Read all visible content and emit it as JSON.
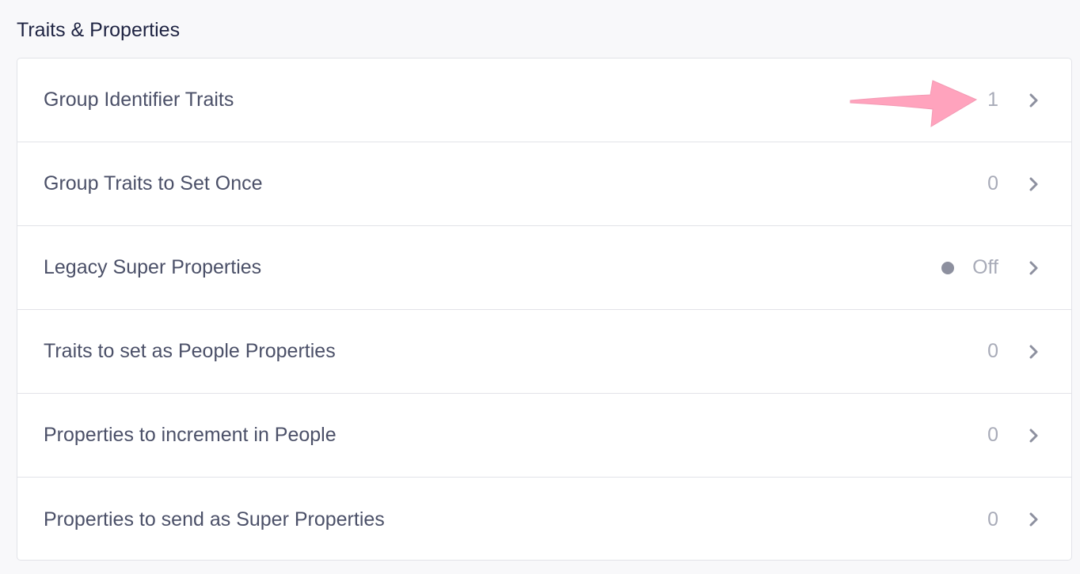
{
  "section_title": "Traits & Properties",
  "rows": [
    {
      "label": "Group Identifier Traits",
      "value": "1"
    },
    {
      "label": "Group Traits to Set Once",
      "value": "0"
    },
    {
      "label": "Legacy Super Properties",
      "value": "Off",
      "status_dot": true
    },
    {
      "label": "Traits to set as People Properties",
      "value": "0"
    },
    {
      "label": "Properties to increment in People",
      "value": "0"
    },
    {
      "label": "Properties to send as Super Properties",
      "value": "0"
    }
  ],
  "colors": {
    "annotation_arrow": "#ffa3bd",
    "chevron": "#8d909f"
  }
}
